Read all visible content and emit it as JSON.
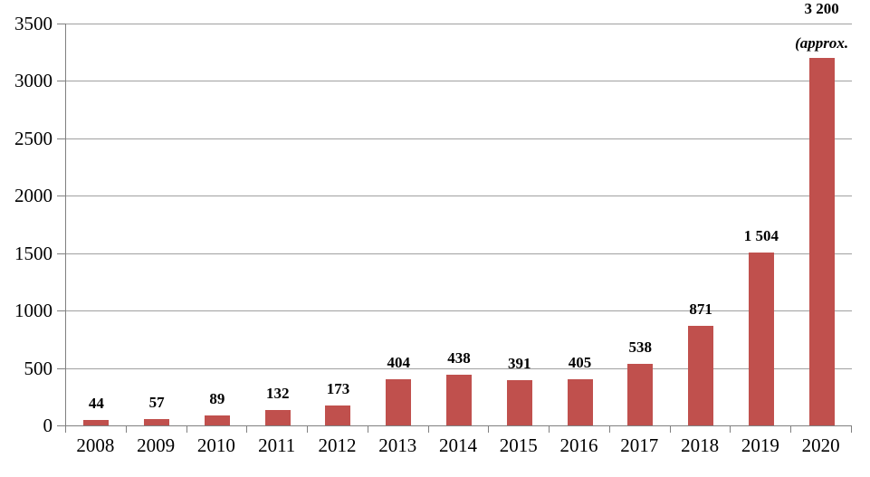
{
  "chart_data": {
    "type": "bar",
    "title": "",
    "xlabel": "",
    "ylabel": "",
    "categories": [
      "2008",
      "2009",
      "2010",
      "2011",
      "2012",
      "2013",
      "2014",
      "2015",
      "2016",
      "2017",
      "2018",
      "2019",
      "2020"
    ],
    "values": [
      44,
      57,
      89,
      132,
      173,
      404,
      438,
      391,
      405,
      538,
      871,
      1504,
      3200
    ],
    "value_labels": [
      "44",
      "57",
      "89",
      "132",
      "173",
      "404",
      "438",
      "391",
      "405",
      "538",
      "871",
      "1 504",
      "3 200"
    ],
    "last_bar_note": "(approx.",
    "ylim": [
      0,
      3500
    ],
    "ytick_step": 500,
    "ytick_labels": [
      "0",
      "500",
      "1000",
      "1500",
      "2000",
      "2500",
      "3000",
      "3500"
    ],
    "grid": true,
    "legend_position": "none",
    "colors": {
      "bar": "#C0504D",
      "gridline": "#A0A0A0",
      "axis": "#808080",
      "text": "#000000",
      "background": "#FFFFFF"
    }
  }
}
